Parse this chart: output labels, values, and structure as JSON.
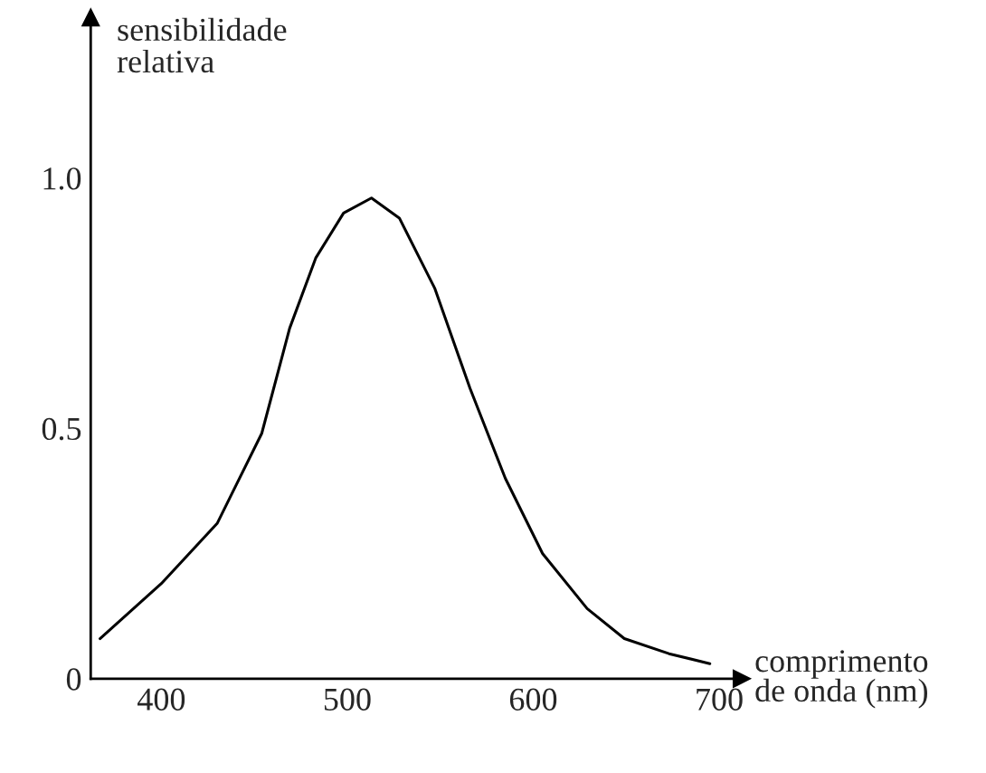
{
  "chart_data": {
    "type": "line",
    "xlabel": "comprimento\nde onda (nm)",
    "ylabel": "sensibilidade\nrelativa",
    "x": [
      367,
      400,
      430,
      454,
      469,
      483,
      498,
      513,
      528,
      547,
      566,
      585,
      605,
      629,
      649,
      673,
      695
    ],
    "series": [
      {
        "color": "#000000",
        "values": [
          0.08,
          0.19,
          0.31,
          0.49,
          0.7,
          0.84,
          0.93,
          0.96,
          0.92,
          0.78,
          0.58,
          0.4,
          0.25,
          0.14,
          0.08,
          0.05,
          0.03
        ]
      }
    ],
    "xlim": [
      362,
      712
    ],
    "ylim": [
      0,
      1.32
    ],
    "xticks": [
      400,
      500,
      600,
      700
    ],
    "yticks": [
      0,
      0.5,
      {
        "value": 1,
        "label": "1.0"
      }
    ],
    "grid": false,
    "legend": false,
    "marker": "none",
    "line_style": "solid"
  }
}
